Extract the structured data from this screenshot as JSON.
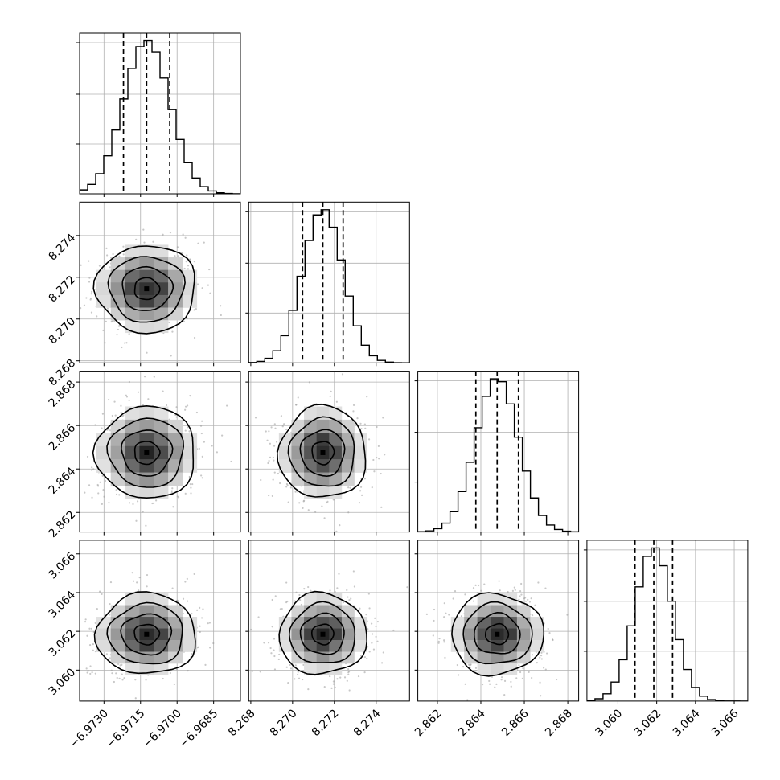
{
  "chart_data": {
    "type": "corner",
    "grid": true,
    "quantiles": [
      0.16,
      0.5,
      0.84
    ],
    "params": [
      {
        "mean": -6.97125,
        "sigma": 0.00095,
        "range": [
          -6.974,
          -6.9674
        ],
        "ticks": [
          -6.973,
          -6.9715,
          -6.97,
          -6.9685
        ],
        "tick_labels": [
          "−6.9730",
          "−6.9715",
          "−6.9700",
          "−6.9685"
        ],
        "quantile_values": [
          -6.9722,
          -6.97125,
          -6.9703
        ]
      },
      {
        "mean": 8.27145,
        "sigma": 0.00097,
        "range": [
          8.2679,
          8.2756
        ],
        "ticks": [
          8.268,
          8.27,
          8.272,
          8.274
        ],
        "tick_labels": [
          "8.268",
          "8.270",
          "8.272",
          "8.274"
        ],
        "quantile_values": [
          8.27048,
          8.27145,
          8.27242
        ]
      },
      {
        "mean": 2.86475,
        "sigma": 0.00098,
        "range": [
          2.8611,
          2.8685
        ],
        "ticks": [
          2.862,
          2.864,
          2.866,
          2.868
        ],
        "tick_labels": [
          "2.862",
          "2.864",
          "2.866",
          "2.868"
        ],
        "quantile_values": [
          2.86377,
          2.86475,
          2.86573
        ]
      },
      {
        "mean": 3.06185,
        "sigma": 0.00097,
        "range": [
          3.0584,
          3.0667
        ],
        "ticks": [
          3.06,
          3.062,
          3.064,
          3.066
        ],
        "tick_labels": [
          "3.060",
          "3.062",
          "3.064",
          "3.066"
        ],
        "quantile_values": [
          3.06088,
          3.06185,
          3.06282
        ]
      }
    ]
  }
}
